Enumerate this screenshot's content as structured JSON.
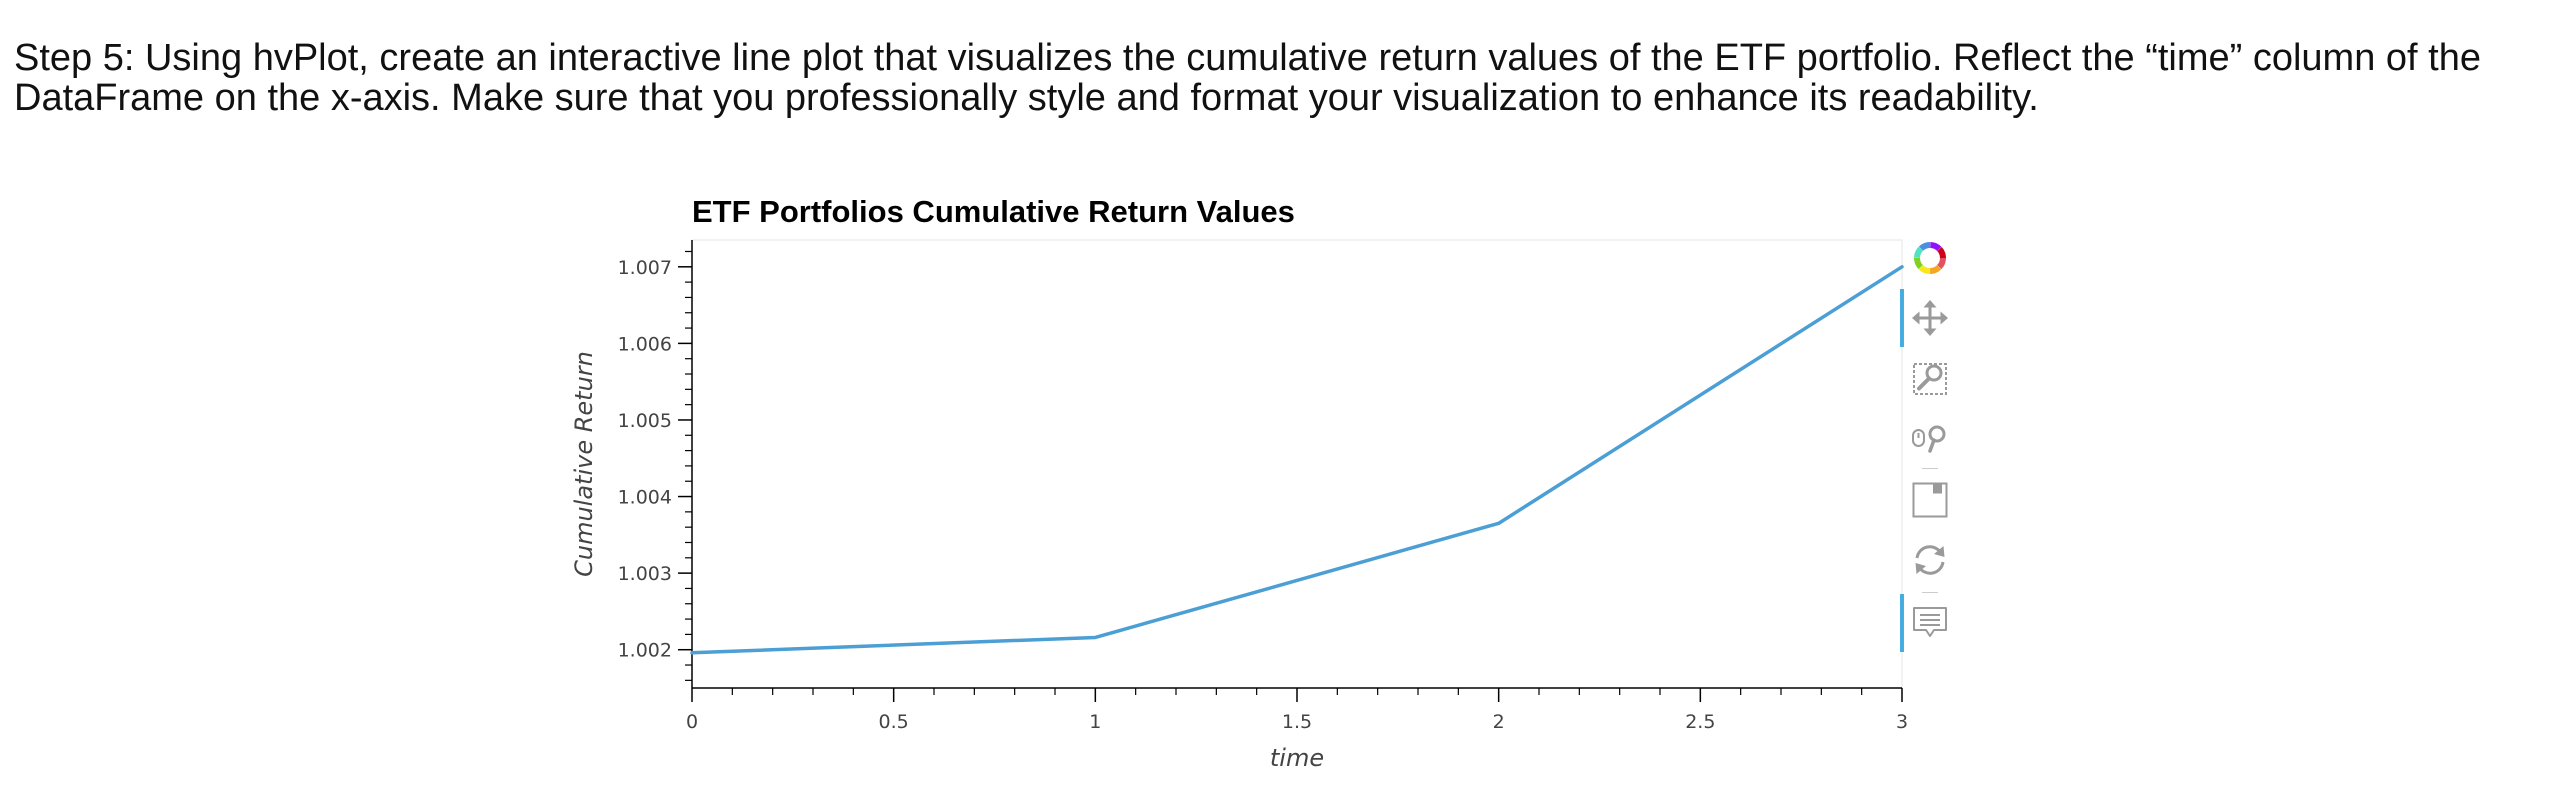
{
  "instruction": {
    "text": "Step 5: Using hvPlot, create an interactive line plot that visualizes the cumulative return values of the ETF portfolio. Reflect the “time” column of the DataFrame on the x-axis. Make sure that you professionally style and format your visualization to enhance its readability."
  },
  "chart_data": {
    "type": "line",
    "title": "ETF Portfolios Cumulative Return Values",
    "xlabel": "time",
    "ylabel": "Cumulative Return",
    "x": [
      0,
      1,
      2,
      3
    ],
    "series": [
      {
        "values": [
          1.00196,
          1.00216,
          1.00365,
          1.007
        ]
      }
    ],
    "xlim": [
      0,
      3
    ],
    "ylim": [
      1.0015,
      1.00735
    ],
    "xticks": [
      0,
      0.5,
      1,
      1.5,
      2,
      2.5,
      3
    ],
    "xtick_labels": [
      "0",
      "0.5",
      "1",
      "1.5",
      "2",
      "2.5",
      "3"
    ],
    "yticks": [
      1.002,
      1.003,
      1.004,
      1.005,
      1.006,
      1.007
    ],
    "ytick_labels": [
      "1.002",
      "1.003",
      "1.004",
      "1.005",
      "1.006",
      "1.007"
    ],
    "grid": false,
    "line_color": "#4c9fd4"
  },
  "toolbar": {
    "tools": [
      {
        "icon": "bokeh-logo-icon",
        "name": "bokeh-logo",
        "active": false
      },
      {
        "icon": "pan-icon",
        "name": "pan-tool",
        "active": true
      },
      {
        "icon": "box-zoom-icon",
        "name": "box-zoom-tool",
        "active": false
      },
      {
        "icon": "wheel-zoom-icon",
        "name": "wheel-zoom-tool",
        "active": false
      },
      {
        "icon": "save-icon",
        "name": "save-tool",
        "active": false
      },
      {
        "icon": "reset-icon",
        "name": "reset-tool",
        "active": false
      },
      {
        "icon": "hover-icon",
        "name": "hover-tool",
        "active": true
      }
    ],
    "active_color": "#26a0da"
  }
}
